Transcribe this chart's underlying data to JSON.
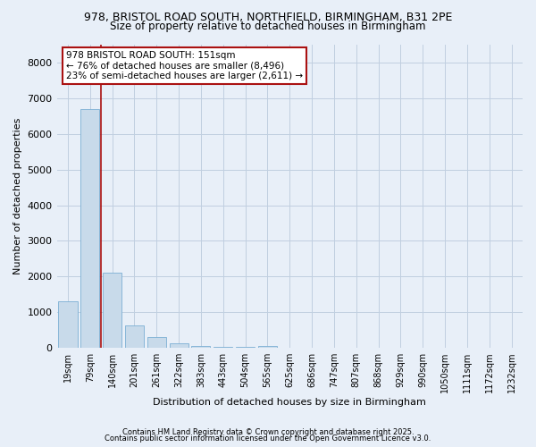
{
  "title_line1": "978, BRISTOL ROAD SOUTH, NORTHFIELD, BIRMINGHAM, B31 2PE",
  "title_line2": "Size of property relative to detached houses in Birmingham",
  "xlabel": "Distribution of detached houses by size in Birmingham",
  "ylabel": "Number of detached properties",
  "categories": [
    "19sqm",
    "79sqm",
    "140sqm",
    "201sqm",
    "261sqm",
    "322sqm",
    "383sqm",
    "443sqm",
    "504sqm",
    "565sqm",
    "625sqm",
    "686sqm",
    "747sqm",
    "807sqm",
    "868sqm",
    "929sqm",
    "990sqm",
    "1050sqm",
    "1111sqm",
    "1172sqm",
    "1232sqm"
  ],
  "values": [
    1300,
    6700,
    2100,
    620,
    300,
    130,
    60,
    30,
    20,
    50,
    5,
    5,
    3,
    2,
    2,
    1,
    1,
    1,
    1,
    1,
    1
  ],
  "bar_color": "#c8daea",
  "bar_edge_color": "#7bafd4",
  "vline_color": "#aa1111",
  "annotation_text": "978 BRISTOL ROAD SOUTH: 151sqm\n← 76% of detached houses are smaller (8,496)\n23% of semi-detached houses are larger (2,611) →",
  "annotation_box_facecolor": "#ffffff",
  "annotation_box_edgecolor": "#aa1111",
  "ylim": [
    0,
    8500
  ],
  "yticks": [
    0,
    1000,
    2000,
    3000,
    4000,
    5000,
    6000,
    7000,
    8000
  ],
  "grid_color": "#c0cfe0",
  "bg_color": "#e8eff8",
  "plot_bg_color": "#e8eff8",
  "footer_line1": "Contains HM Land Registry data © Crown copyright and database right 2025.",
  "footer_line2": "Contains public sector information licensed under the Open Government Licence v3.0."
}
